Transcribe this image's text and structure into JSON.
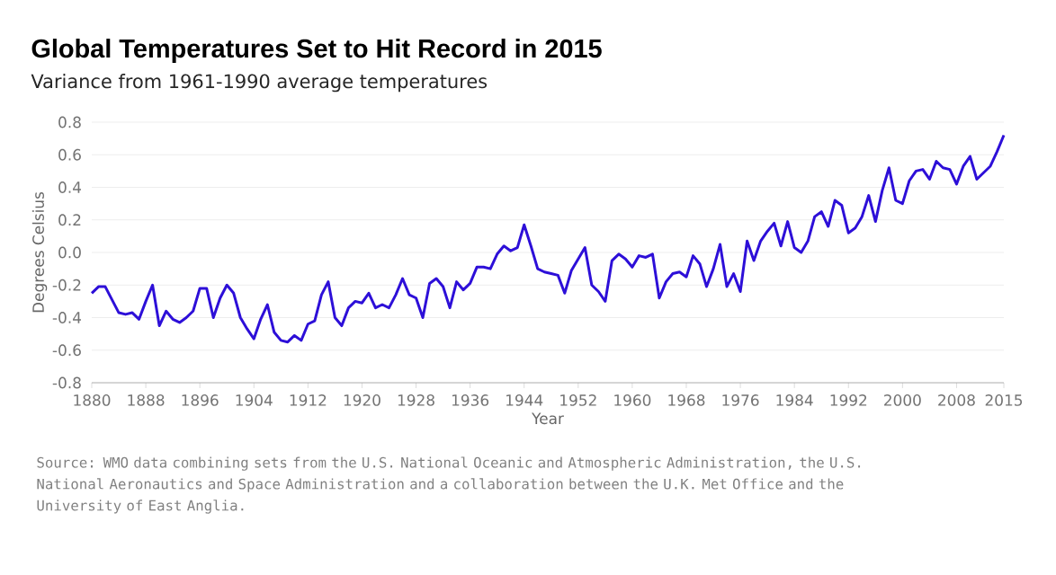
{
  "chart_data": {
    "type": "line",
    "title": "Global Temperatures Set to Hit Record in 2015",
    "subtitle": "Variance from 1961-1990 average temperatures",
    "xlabel": "Year",
    "ylabel": "Degrees Celsius",
    "annotations": [
      "Source: WMO data combining sets from the U.S. National Oceanic and Atmospheric Administration, the U.S. National Aeronautics and Space Administration and a collaboration between the U.K. Met Office and the University of East Anglia."
    ],
    "x": [
      1880,
      1881,
      1882,
      1883,
      1884,
      1885,
      1886,
      1887,
      1888,
      1889,
      1890,
      1891,
      1892,
      1893,
      1894,
      1895,
      1896,
      1897,
      1898,
      1899,
      1900,
      1901,
      1902,
      1903,
      1904,
      1905,
      1906,
      1907,
      1908,
      1909,
      1910,
      1911,
      1912,
      1913,
      1914,
      1915,
      1916,
      1917,
      1918,
      1919,
      1920,
      1921,
      1922,
      1923,
      1924,
      1925,
      1926,
      1927,
      1928,
      1929,
      1930,
      1931,
      1932,
      1933,
      1934,
      1935,
      1936,
      1937,
      1938,
      1939,
      1940,
      1941,
      1942,
      1943,
      1944,
      1945,
      1946,
      1947,
      1948,
      1949,
      1950,
      1951,
      1952,
      1953,
      1954,
      1955,
      1956,
      1957,
      1958,
      1959,
      1960,
      1961,
      1962,
      1963,
      1964,
      1965,
      1966,
      1967,
      1968,
      1969,
      1970,
      1971,
      1972,
      1973,
      1974,
      1975,
      1976,
      1977,
      1978,
      1979,
      1980,
      1981,
      1982,
      1983,
      1984,
      1985,
      1986,
      1987,
      1988,
      1989,
      1990,
      1991,
      1992,
      1993,
      1994,
      1995,
      1996,
      1997,
      1998,
      1999,
      2000,
      2001,
      2002,
      2003,
      2004,
      2005,
      2006,
      2007,
      2008,
      2009,
      2010,
      2011,
      2012,
      2013,
      2014,
      2015
    ],
    "series": [
      {
        "color": "#2d0fd8",
        "values": [
          -0.25,
          -0.21,
          -0.21,
          -0.29,
          -0.37,
          -0.38,
          -0.37,
          -0.41,
          -0.3,
          -0.2,
          -0.45,
          -0.36,
          -0.41,
          -0.43,
          -0.4,
          -0.36,
          -0.22,
          -0.22,
          -0.4,
          -0.28,
          -0.2,
          -0.25,
          -0.4,
          -0.47,
          -0.53,
          -0.41,
          -0.32,
          -0.49,
          -0.54,
          -0.55,
          -0.51,
          -0.54,
          -0.44,
          -0.42,
          -0.26,
          -0.18,
          -0.4,
          -0.45,
          -0.34,
          -0.3,
          -0.31,
          -0.25,
          -0.34,
          -0.32,
          -0.34,
          -0.26,
          -0.16,
          -0.26,
          -0.28,
          -0.4,
          -0.19,
          -0.16,
          -0.21,
          -0.34,
          -0.18,
          -0.23,
          -0.19,
          -0.09,
          -0.09,
          -0.1,
          -0.01,
          0.04,
          0.01,
          0.03,
          0.17,
          0.04,
          -0.1,
          -0.12,
          -0.13,
          -0.14,
          -0.25,
          -0.11,
          -0.04,
          0.03,
          -0.2,
          -0.24,
          -0.3,
          -0.05,
          -0.01,
          -0.04,
          -0.09,
          -0.02,
          -0.03,
          -0.01,
          -0.28,
          -0.18,
          -0.13,
          -0.12,
          -0.15,
          -0.02,
          -0.07,
          -0.21,
          -0.1,
          0.05,
          -0.21,
          -0.13,
          -0.24,
          0.07,
          -0.05,
          0.07,
          0.13,
          0.18,
          0.04,
          0.19,
          0.03,
          0.0,
          0.07,
          0.22,
          0.25,
          0.16,
          0.32,
          0.29,
          0.12,
          0.15,
          0.22,
          0.35,
          0.19,
          0.38,
          0.52,
          0.32,
          0.3,
          0.44,
          0.5,
          0.51,
          0.45,
          0.56,
          0.52,
          0.51,
          0.42,
          0.53,
          0.59,
          0.45,
          0.49,
          0.53,
          0.62,
          0.72
        ]
      }
    ],
    "xlim": [
      1880,
      2015
    ],
    "xticks": [
      1880,
      1888,
      1896,
      1904,
      1912,
      1920,
      1928,
      1936,
      1944,
      1952,
      1960,
      1968,
      1976,
      1984,
      1992,
      2000,
      2008,
      2015
    ],
    "ylim": [
      -0.8,
      0.8
    ],
    "yticks": [
      -0.8,
      -0.6,
      -0.4,
      -0.2,
      {
        "value": 0,
        "label": "0.0"
      },
      0.2,
      0.4,
      0.6,
      0.8
    ],
    "grid": "y"
  }
}
